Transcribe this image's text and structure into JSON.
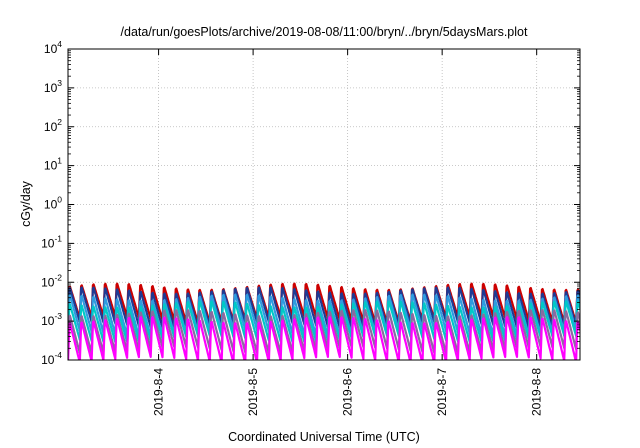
{
  "chart_data": {
    "type": "line",
    "title": "/data/run/goesPlots/archive/2019-08-08/11:00/bryn/../bryn/5daysMars.plot",
    "xlabel": "Coordinated Universal Time (UTC)",
    "ylabel": "cGy/day",
    "x_range": [
      "2019-08-03T01:00",
      "2019-08-08T11:00"
    ],
    "x_ticks": [
      "2019-8-4",
      "2019-8-5",
      "2019-8-6",
      "2019-8-7",
      "2019-8-8"
    ],
    "y_scale": "log",
    "ylim": [
      0.0001,
      10000
    ],
    "y_ticks": [
      {
        "base": "10",
        "exp": "-4"
      },
      {
        "base": "10",
        "exp": "-3"
      },
      {
        "base": "10",
        "exp": "-2"
      },
      {
        "base": "10",
        "exp": "-1"
      },
      {
        "base": "10",
        "exp": "0"
      },
      {
        "base": "10",
        "exp": "1"
      },
      {
        "base": "10",
        "exp": "2"
      },
      {
        "base": "10",
        "exp": "3"
      },
      {
        "base": "10",
        "exp": "4"
      }
    ],
    "grid": true,
    "series_colors": [
      "#cc0000",
      "#1f3a93",
      "#2e9be0",
      "#00c8c8",
      "#8a6aa0",
      "#ff00ff"
    ],
    "series": [
      {
        "peak": 0.0085,
        "trough": 0.0011,
        "color": "#cc0000"
      },
      {
        "peak": 0.0068,
        "trough": 0.0008,
        "color": "#1f3a93"
      },
      {
        "peak": 0.0045,
        "trough": 0.0005,
        "color": "#2e9be0"
      },
      {
        "peak": 0.003,
        "trough": 0.00035,
        "color": "#00c8c8"
      },
      {
        "peak": 0.0018,
        "trough": 0.00018,
        "color": "#8a6aa0"
      },
      {
        "peak": 0.0012,
        "trough": 0.0001,
        "color": "#ff00ff"
      }
    ],
    "cycle_hours": 3,
    "first_peak_hour": 0
  }
}
